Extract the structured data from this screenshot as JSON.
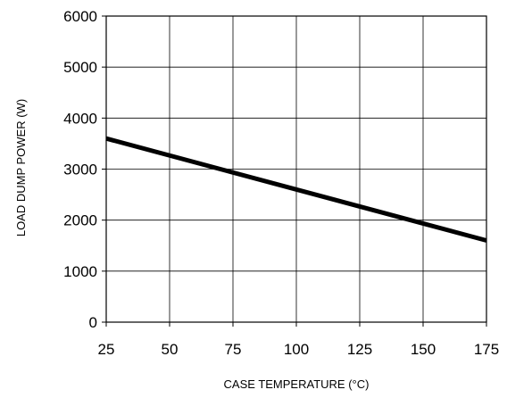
{
  "chart_data": {
    "type": "line",
    "xlabel": "CASE TEMPERATURE (°C)",
    "ylabel": "LOAD DUMP POWER (W)",
    "xlim": [
      25,
      175
    ],
    "ylim": [
      0,
      6000
    ],
    "x_ticks": [
      25,
      50,
      75,
      100,
      125,
      150,
      175
    ],
    "y_ticks": [
      0,
      1000,
      2000,
      3000,
      4000,
      5000,
      6000
    ],
    "x_tick_labels": [
      "25",
      "50",
      "75",
      "100",
      "125",
      "150",
      "175"
    ],
    "y_tick_labels": [
      "0",
      "1000",
      "2000",
      "3000",
      "4000",
      "5000",
      "6000"
    ],
    "grid": true,
    "series": [
      {
        "x": [
          25,
          175
        ],
        "y": [
          3600,
          1600
        ],
        "color": "#000000"
      }
    ]
  }
}
